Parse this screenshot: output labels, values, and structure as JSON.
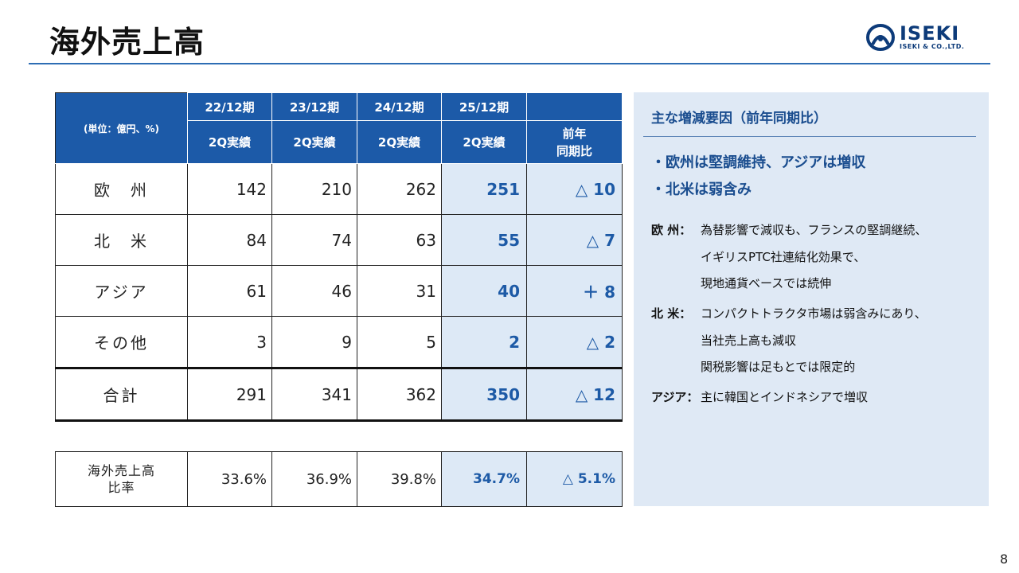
{
  "page": {
    "title": "海外売上高",
    "page_number": "8"
  },
  "logo": {
    "brand": "ISEKI",
    "sub": "ISEKI & CO.,LTD."
  },
  "table": {
    "unit_label": "(単位：億円、%)",
    "periods": [
      "22/12期",
      "23/12期",
      "24/12期",
      "25/12期"
    ],
    "sub_headers": [
      "2Q実績",
      "2Q実績",
      "2Q実績",
      "2Q実績"
    ],
    "yoy_header": [
      "前年",
      "同期比"
    ],
    "rows": [
      {
        "label": "欧　州",
        "values": [
          "142",
          "210",
          "262"
        ],
        "current": "251",
        "yoy": "△ 10"
      },
      {
        "label": "北　米",
        "values": [
          "84",
          "74",
          "63"
        ],
        "current": "55",
        "yoy": "△ 7"
      },
      {
        "label": "アジア",
        "values": [
          "61",
          "46",
          "31"
        ],
        "current": "40",
        "yoy": "＋ 8"
      },
      {
        "label": "その他",
        "values": [
          "3",
          "9",
          "5"
        ],
        "current": "2",
        "yoy": "△ 2"
      }
    ],
    "total": {
      "label": "合計",
      "values": [
        "291",
        "341",
        "362"
      ],
      "current": "350",
      "yoy": "△ 12"
    }
  },
  "ratio": {
    "label": [
      "海外売上高",
      "比率"
    ],
    "values": [
      "33.6%",
      "36.9%",
      "39.8%"
    ],
    "current": "34.7%",
    "yoy": "△ 5.1%"
  },
  "panel": {
    "title": "主な増減要因（前年同期比）",
    "points": [
      "・欧州は堅調維持、アジアは増収",
      "・北米は弱含み"
    ],
    "details": [
      {
        "label": "欧 州：",
        "lines": [
          "為替影響で減収も、フランスの堅調継続、",
          "イギリスPTC社連結化効果で、",
          "現地通貨ベースでは続伸"
        ]
      },
      {
        "label": "北 米：",
        "lines": [
          "コンパクトトラクタ市場は弱含みにあり、",
          "当社売上高も減収",
          "関税影響は足もとでは限定的"
        ]
      },
      {
        "label": "アジア：",
        "lines": [
          "主に韓国とインドネシアで増収"
        ]
      }
    ]
  },
  "colors": {
    "accent": "#1c5aa8",
    "highlight_bg": "#dde9f6",
    "highlight_text": "#1d5aa6",
    "panel_bg": "#dfe9f5"
  }
}
